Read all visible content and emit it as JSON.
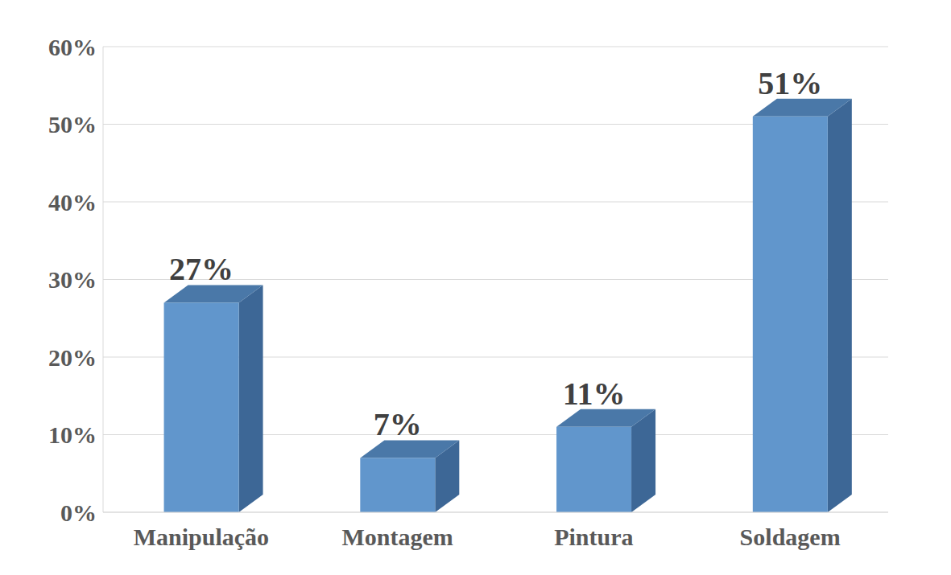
{
  "chart_data": {
    "type": "bar",
    "categories": [
      "Manipulação",
      "Montagem",
      "Pintura",
      "Soldagem"
    ],
    "values": [
      27,
      7,
      11,
      51
    ],
    "value_labels": [
      "27%",
      "7%",
      "11%",
      "51%"
    ],
    "color": "#6196cc",
    "ylim": [
      0,
      60
    ],
    "yticks": [
      {
        "value": 0,
        "label": "0%"
      },
      {
        "value": 10,
        "label": "10%"
      },
      {
        "value": 20,
        "label": "20%"
      },
      {
        "value": 30,
        "label": "30%"
      },
      {
        "value": 40,
        "label": "40%"
      },
      {
        "value": 50,
        "label": "50%"
      },
      {
        "value": 60,
        "label": "60%"
      }
    ],
    "grid": true,
    "data_labels": true
  }
}
